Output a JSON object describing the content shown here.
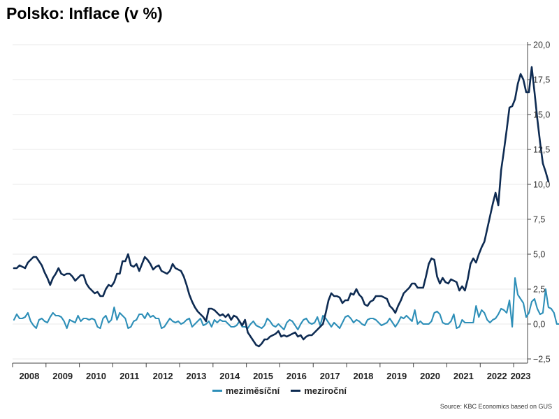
{
  "title": "Polsko: Inflace (v %)",
  "source": "Source: KBC Economics based on GUS",
  "legend": {
    "mom_label": "meziměsíční",
    "yoy_label": "meziroční"
  },
  "colors": {
    "mom": "#2E8FB8",
    "yoy": "#0E2B52",
    "grid": "#e8e8e8",
    "axis": "#444444"
  },
  "chart_data": {
    "type": "line",
    "title": "Polsko: Inflace (v %)",
    "xlabel": "",
    "ylabel": "",
    "x_start": "2008-01",
    "x_end": "2023-05",
    "ylim": [
      -2.5,
      20
    ],
    "yticks": [
      -2.5,
      0,
      2.5,
      5,
      7.5,
      10,
      12.5,
      15,
      17.5,
      20
    ],
    "ytick_labels": [
      "−2,5",
      "0,0",
      "2,5",
      "5,0",
      "7,5",
      "10,0",
      "12,5",
      "15,0",
      "17,5",
      "20,0"
    ],
    "xtick_labels": [
      "2008",
      "2009",
      "2010",
      "2011",
      "2012",
      "2013",
      "2014",
      "2015",
      "2016",
      "2017",
      "2018",
      "2019",
      "2020",
      "2021",
      "2022",
      "2023"
    ],
    "grid": true,
    "legend_position": "bottom",
    "series": [
      {
        "name": "meziroční",
        "key": "yoy",
        "values": [
          4.0,
          4.0,
          4.2,
          4.1,
          4.0,
          4.4,
          4.6,
          4.8,
          4.8,
          4.5,
          4.2,
          3.7,
          3.3,
          2.8,
          3.3,
          3.6,
          4.0,
          3.6,
          3.5,
          3.6,
          3.6,
          3.4,
          3.1,
          3.3,
          3.5,
          3.5,
          2.9,
          2.6,
          2.4,
          2.2,
          2.3,
          2.0,
          2.0,
          2.5,
          2.8,
          2.7,
          3.0,
          3.6,
          3.6,
          4.5,
          4.5,
          5.0,
          4.2,
          4.1,
          4.3,
          3.8,
          4.3,
          4.8,
          4.6,
          4.3,
          3.9,
          4.1,
          4.2,
          3.8,
          3.7,
          3.6,
          3.8,
          4.3,
          4.0,
          3.9,
          3.8,
          3.4,
          2.8,
          2.1,
          1.6,
          1.2,
          0.9,
          0.7,
          0.5,
          0.2,
          1.1,
          1.1,
          1.0,
          0.8,
          0.6,
          0.7,
          0.5,
          0.7,
          0.3,
          0.6,
          0.5,
          0.2,
          -0.1,
          0.3,
          -0.6,
          -0.9,
          -1.2,
          -1.5,
          -1.6,
          -1.4,
          -1.1,
          -1.1,
          -0.9,
          -0.8,
          -0.7,
          -0.5,
          -0.9,
          -0.8,
          -0.9,
          -0.8,
          -0.7,
          -0.6,
          -0.9,
          -0.8,
          -1.1,
          -0.9,
          -0.8,
          -0.8,
          -0.6,
          -0.4,
          -0.2,
          0.0,
          0.8,
          1.7,
          2.2,
          2.0,
          2.0,
          1.9,
          1.5,
          1.7,
          1.7,
          2.2,
          2.1,
          2.5,
          2.1,
          1.9,
          1.4,
          1.3,
          1.6,
          1.7,
          2.0,
          2.0,
          2.0,
          1.9,
          1.8,
          1.3,
          1.1,
          0.8,
          1.3,
          1.7,
          2.2,
          2.4,
          2.6,
          2.9,
          2.9,
          2.6,
          2.6,
          2.6,
          3.4,
          4.3,
          4.7,
          4.6,
          3.4,
          2.9,
          3.3,
          3.0,
          2.9,
          3.2,
          3.1,
          3.0,
          2.4,
          2.7,
          2.4,
          3.2,
          4.3,
          4.7,
          4.4,
          5.0,
          5.5,
          5.9,
          6.8,
          7.7,
          8.6,
          9.4,
          8.5,
          11.0,
          12.4,
          13.9,
          15.5,
          15.6,
          16.1,
          17.2,
          17.9,
          17.5,
          16.6,
          16.6,
          18.4,
          16.6,
          14.7,
          13.0,
          11.5,
          10.9,
          10.2
        ]
      },
      {
        "name": "meziměsíční",
        "key": "mom",
        "values": [
          0.3,
          0.7,
          0.4,
          0.4,
          0.5,
          0.8,
          0.2,
          -0.1,
          -0.3,
          0.3,
          0.4,
          0.2,
          0.1,
          0.5,
          0.8,
          0.6,
          0.6,
          0.5,
          0.2,
          -0.3,
          0.3,
          0.2,
          0.1,
          0.6,
          0.2,
          0.4,
          0.4,
          0.3,
          0.4,
          0.3,
          -0.2,
          -0.3,
          0.4,
          0.6,
          0.1,
          0.3,
          1.2,
          0.3,
          0.8,
          0.6,
          0.4,
          -0.3,
          -0.2,
          0.2,
          0.3,
          0.7,
          0.7,
          0.4,
          0.8,
          0.5,
          0.6,
          0.4,
          0.4,
          -0.3,
          -0.2,
          0.1,
          0.4,
          0.2,
          0.1,
          0.2,
          0.0,
          0.1,
          0.3,
          0.4,
          -0.2,
          0.0,
          0.2,
          0.4,
          -0.1,
          0.0,
          0.2,
          -0.2,
          0.3,
          0.1,
          0.3,
          0.2,
          0.2,
          0.0,
          -0.2,
          -0.2,
          -0.1,
          0.2,
          -0.2,
          -0.2,
          -0.3,
          0.0,
          0.2,
          -0.1,
          -0.2,
          -0.3,
          -0.1,
          0.4,
          0.2,
          -0.1,
          -0.2,
          0.0,
          -0.2,
          -0.4,
          0.1,
          0.3,
          0.2,
          -0.1,
          -0.4,
          0.0,
          0.3,
          0.4,
          0.1,
          0.0,
          0.1,
          0.5,
          -0.1,
          0.6,
          0.4,
          0.1,
          -0.2,
          0.1,
          -0.1,
          -0.3,
          0.1,
          0.5,
          0.6,
          0.4,
          0.1,
          0.3,
          0.2,
          0.0,
          -0.1,
          0.3,
          0.4,
          0.4,
          0.3,
          0.1,
          -0.1,
          0.0,
          0.1,
          0.4,
          0.1,
          -0.2,
          0.1,
          0.5,
          0.4,
          0.6,
          0.4,
          0.2,
          1.0,
          0.0,
          0.2,
          0.0,
          0.0,
          0.0,
          0.2,
          0.8,
          0.9,
          0.7,
          0.1,
          0.0,
          0.0,
          0.2,
          0.7,
          -0.3,
          -0.2,
          0.3,
          0.1,
          0.1,
          0.1,
          0.1,
          1.3,
          0.5,
          1.0,
          0.8,
          0.3,
          0.1,
          0.3,
          0.4,
          0.7,
          1.1,
          1.0,
          0.8,
          1.7,
          -0.2,
          3.3,
          2.1,
          1.8,
          1.5,
          0.5,
          0.8,
          1.6,
          1.8,
          1.1,
          0.7,
          0.8,
          2.5,
          1.2,
          1.1,
          0.8,
          0.0,
          0.0,
          -0.2,
          0.0
        ]
      }
    ]
  }
}
